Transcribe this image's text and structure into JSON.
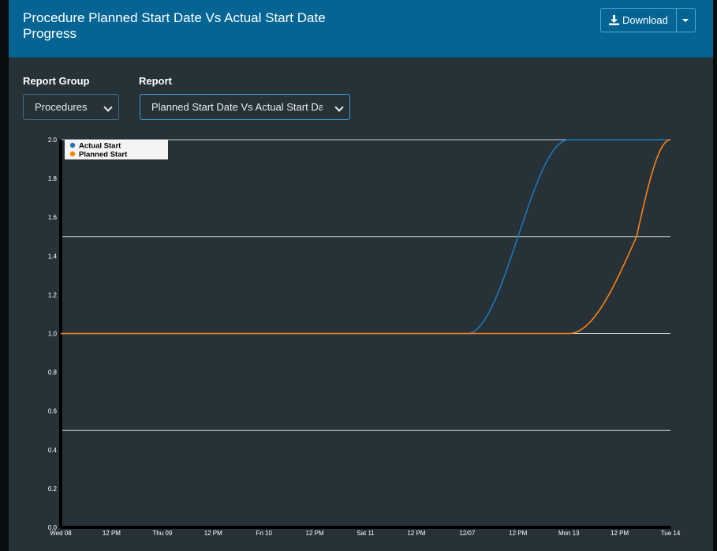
{
  "header": {
    "title": "Procedure Planned Start Date Vs Actual Start Date Progress",
    "download_label": "Download"
  },
  "filters": {
    "report_group_label": "Report Group",
    "report_group_value": "Procedures",
    "report_label": "Report",
    "report_value": "Planned Start Date Vs Actual Start Dat"
  },
  "colors": {
    "header_bg": "#046595",
    "panel_bg": "#263238",
    "actual": "#1f77b4",
    "planned": "#ff7f0e"
  },
  "chart_data": {
    "type": "line",
    "title": "",
    "xlabel": "",
    "ylabel": "",
    "ylim": [
      0,
      2
    ],
    "y_ticks": [
      "0.0",
      "0.2",
      "0.4",
      "0.6",
      "0.8",
      "1.0",
      "1.2",
      "1.4",
      "1.6",
      "1.8",
      "2.0"
    ],
    "x_ticks": [
      "Wed 08",
      "12 PM",
      "Thu 09",
      "12 PM",
      "Fri 10",
      "12 PM",
      "Sat 11",
      "12 PM",
      "12/07",
      "12 PM",
      "Mon 13",
      "12 PM",
      "Tue 14"
    ],
    "grid_lines_y": [
      0.5,
      1.0,
      1.5,
      2.0
    ],
    "legend": {
      "position": "top-left"
    },
    "series": [
      {
        "name": "Actual Start",
        "color": "#1f77b4",
        "points": [
          {
            "x": "Wed 08 00:00",
            "y": 1.0
          },
          {
            "x": "Sun 12 00:00",
            "y": 1.0
          },
          {
            "x": "Sun 12 12:00",
            "y": 1.5
          },
          {
            "x": "Mon 13 00:00",
            "y": 2.0
          },
          {
            "x": "Tue 14 00:00",
            "y": 2.0
          }
        ]
      },
      {
        "name": "Planned Start",
        "color": "#ff7f0e",
        "points": [
          {
            "x": "Wed 08 00:00",
            "y": 1.0
          },
          {
            "x": "Mon 13 00:00",
            "y": 1.0
          },
          {
            "x": "Mon 13 16:00",
            "y": 1.5
          },
          {
            "x": "Tue 14 00:00",
            "y": 2.0
          }
        ]
      }
    ]
  }
}
